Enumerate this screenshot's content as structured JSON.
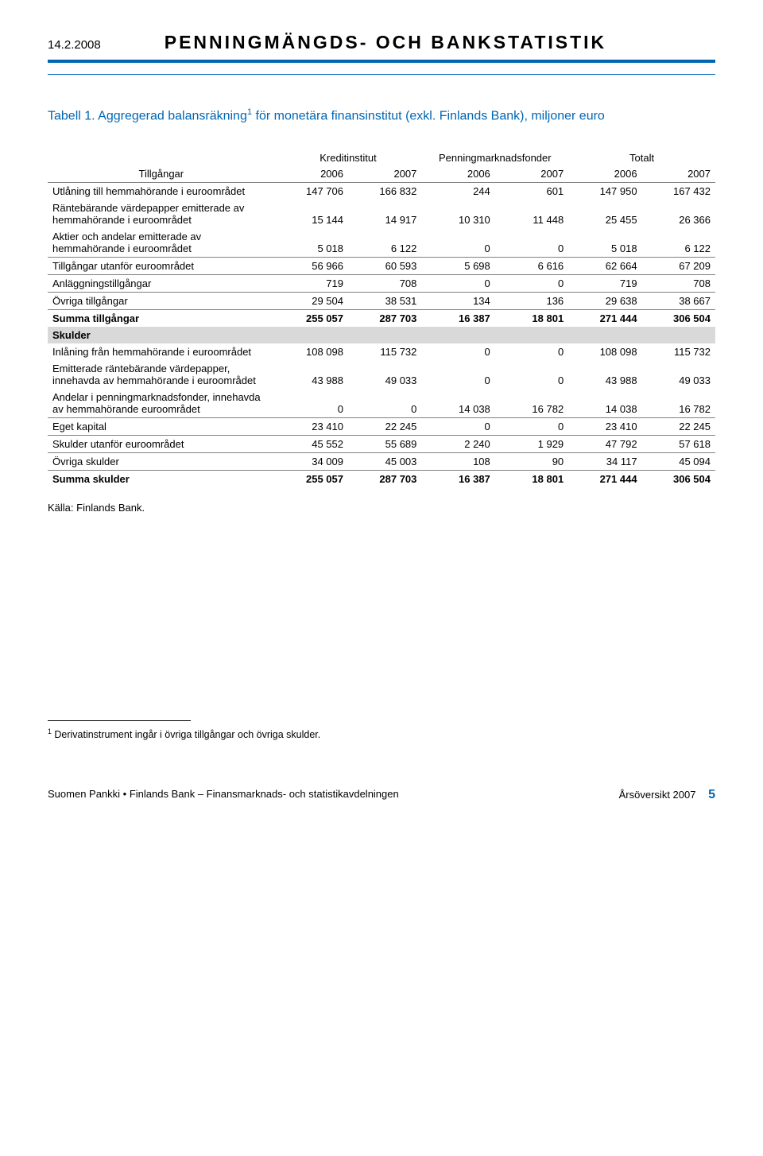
{
  "header": {
    "date": "14.2.2008",
    "title": "PENNINGMÄNGDS- OCH BANKSTATISTIK"
  },
  "table_title_prefix": "Tabell 1. Aggregerad balansräkning",
  "table_title_sup": "1",
  "table_title_suffix": " för monetära finansinstitut (exkl. Finlands Bank), miljoner euro",
  "columns": {
    "tillgangar": "Tillgångar",
    "group1": "Kreditinstitut",
    "group2": "Penningmarknadsfonder",
    "group3": "Totalt",
    "y2006": "2006",
    "y2007": "2007"
  },
  "rows": [
    {
      "label": "Utlåning till hemmahörande i euroområdet",
      "v": [
        "147 706",
        "166 832",
        "244",
        "601",
        "147 950",
        "167 432"
      ]
    },
    {
      "label": "Räntebärande värdepapper emitterade av hemmahörande i euroområdet",
      "v": [
        "15 144",
        "14 917",
        "10 310",
        "11 448",
        "25 455",
        "26 366"
      ]
    },
    {
      "label": "Aktier och andelar emitterade av hemmahörande i euroområdet",
      "v": [
        "5 018",
        "6 122",
        "0",
        "0",
        "5 018",
        "6 122"
      ]
    },
    {
      "label": "Tillgångar utanför euroområdet",
      "v": [
        "56 966",
        "60 593",
        "5 698",
        "6 616",
        "62 664",
        "67 209"
      ],
      "sep": true
    },
    {
      "label": "Anläggningstillgångar",
      "v": [
        "719",
        "708",
        "0",
        "0",
        "719",
        "708"
      ],
      "sep": true
    },
    {
      "label": "Övriga tillgångar",
      "v": [
        "29 504",
        "38 531",
        "134",
        "136",
        "29 638",
        "38 667"
      ],
      "sep": true
    },
    {
      "label": "Summa tillgångar",
      "v": [
        "255 057",
        "287 703",
        "16 387",
        "18 801",
        "271 444",
        "306 504"
      ],
      "sep": true,
      "bold": true
    }
  ],
  "section2_label": "Skulder",
  "rows2": [
    {
      "label": "Inlåning från hemmahörande i euroområdet",
      "v": [
        "108 098",
        "115 732",
        "0",
        "0",
        "108 098",
        "115 732"
      ]
    },
    {
      "label": "Emitterade räntebärande värdepapper, innehavda av hemmahörande i euroområdet",
      "v": [
        "43 988",
        "49 033",
        "0",
        "0",
        "43 988",
        "49 033"
      ]
    },
    {
      "label": "Andelar i penningmarknadsfonder, innehavda av hemmahörande euroområdet",
      "v": [
        "0",
        "0",
        "14 038",
        "16 782",
        "14 038",
        "16 782"
      ]
    },
    {
      "label": "Eget kapital",
      "v": [
        "23 410",
        "22 245",
        "0",
        "0",
        "23 410",
        "22 245"
      ],
      "sep": true
    },
    {
      "label": "Skulder utanför euroområdet",
      "v": [
        "45 552",
        "55 689",
        "2 240",
        "1 929",
        "47 792",
        "57 618"
      ],
      "sep": true
    },
    {
      "label": "Övriga skulder",
      "v": [
        "34 009",
        "45 003",
        "108",
        "90",
        "34 117",
        "45 094"
      ],
      "sep": true
    },
    {
      "label": "Summa skulder",
      "v": [
        "255 057",
        "287 703",
        "16 387",
        "18 801",
        "271 444",
        "306 504"
      ],
      "sep": true,
      "bold": true
    }
  ],
  "source": "Källa: Finlands Bank.",
  "footnote_sup": "1",
  "footnote_text": " Derivatinstrument ingår i övriga tillgångar och övriga skulder.",
  "footer": {
    "left": "Suomen Pankki • Finlands Bank – Finansmarknads- och statistikavdelningen",
    "right": "Årsöversikt 2007",
    "page": "5"
  },
  "colors": {
    "accent": "#0066b3",
    "section_bg": "#d9d9d9",
    "rule": "#808080"
  }
}
